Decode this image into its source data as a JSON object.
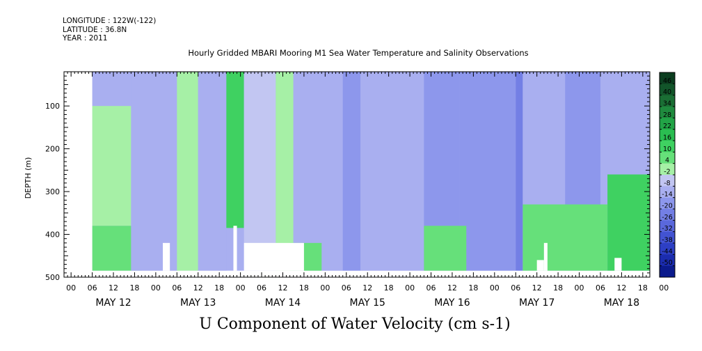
{
  "header": {
    "longitude": "LONGITUDE : 122W(-122)",
    "latitude": "LATITUDE : 36.8N",
    "year": "YEAR : 2011",
    "title": "Hourly Gridded MBARI Mooring M1 Sea Water Temperature and Salinity Observations"
  },
  "variable_label": "U Component of Water Velocity (cm s-1)",
  "chart_data": {
    "type": "heatmap",
    "title": "Hourly Gridded MBARI Mooring M1 Sea Water Temperature and Salinity Observations",
    "variable": "U Component of Water Velocity (cm s-1)",
    "ylabel": "DEPTH (m)",
    "y_reversed": true,
    "ylim": [
      500,
      20
    ],
    "y_ticks": [
      100,
      200,
      300,
      400,
      500
    ],
    "xlim_hours": [
      -2,
      164
    ],
    "x_hour_ticks": [
      "00",
      "06",
      "12",
      "18",
      "00",
      "06",
      "12",
      "18",
      "00",
      "06",
      "12",
      "18",
      "00",
      "06",
      "12",
      "18",
      "00",
      "06",
      "12",
      "18",
      "00",
      "06",
      "12",
      "18",
      "00",
      "06",
      "12",
      "18",
      "00"
    ],
    "x_day_labels": [
      "MAY 12",
      "MAY 13",
      "MAY 14",
      "MAY 15",
      "MAY 16",
      "MAY 17",
      "MAY 18"
    ],
    "data_xlim_hours": [
      6,
      164
    ],
    "data_depth_range": [
      20,
      485
    ],
    "colorbar": {
      "levels": [
        48,
        46,
        40,
        34,
        28,
        22,
        16,
        10,
        4,
        -2,
        -8,
        -14,
        -20,
        -26,
        -32,
        -38,
        -44,
        -50
      ],
      "tick_labels": [
        "46",
        "40",
        "34",
        "28",
        "22",
        "16",
        "10",
        "4",
        "-2",
        "-8",
        "-14",
        "-20",
        "-26",
        "-32",
        "-38",
        "-44",
        "-50"
      ],
      "colors": [
        "#0b3d1f",
        "#12552a",
        "#1a6e34",
        "#1f8a3e",
        "#22a447",
        "#2abd51",
        "#3fd161",
        "#66e07a",
        "#a6f0a6",
        "#c2c6f2",
        "#a9aff0",
        "#8d97ec",
        "#737fe5",
        "#5a68dc",
        "#4253d2",
        "#2d3fc4",
        "#1b2cae",
        "#0b1a8c"
      ]
    },
    "regions": [
      {
        "x0": 6,
        "x1": 17,
        "d0": 20,
        "d1": 100,
        "v": -8
      },
      {
        "x0": 6,
        "x1": 17,
        "d0": 100,
        "d1": 380,
        "v": 4
      },
      {
        "x0": 6,
        "x1": 20,
        "d0": 380,
        "d1": 485,
        "v": 10
      },
      {
        "x0": 17,
        "x1": 30,
        "d0": 20,
        "d1": 485,
        "v": -8
      },
      {
        "x0": 30,
        "x1": 36,
        "d0": 20,
        "d1": 485,
        "v": 4
      },
      {
        "x0": 36,
        "x1": 44,
        "d0": 20,
        "d1": 485,
        "v": -8
      },
      {
        "x0": 44,
        "x1": 49,
        "d0": 20,
        "d1": 385,
        "v": 16
      },
      {
        "x0": 49,
        "x1": 58,
        "d0": 20,
        "d1": 485,
        "v": -2
      },
      {
        "x0": 58,
        "x1": 63,
        "d0": 20,
        "d1": 485,
        "v": 4
      },
      {
        "x0": 63,
        "x1": 77,
        "d0": 20,
        "d1": 485,
        "v": -8
      },
      {
        "x0": 77,
        "x1": 82,
        "d0": 20,
        "d1": 485,
        "v": -14
      },
      {
        "x0": 82,
        "x1": 100,
        "d0": 20,
        "d1": 485,
        "v": -8
      },
      {
        "x0": 100,
        "x1": 110,
        "d0": 20,
        "d1": 485,
        "v": -14
      },
      {
        "x0": 110,
        "x1": 126,
        "d0": 20,
        "d1": 485,
        "v": -14
      },
      {
        "x0": 126,
        "x1": 128,
        "d0": 20,
        "d1": 485,
        "v": -20
      },
      {
        "x0": 128,
        "x1": 140,
        "d0": 20,
        "d1": 485,
        "v": -8
      },
      {
        "x0": 140,
        "x1": 150,
        "d0": 20,
        "d1": 485,
        "v": -14
      },
      {
        "x0": 150,
        "x1": 164,
        "d0": 20,
        "d1": 485,
        "v": -8
      },
      {
        "x0": 62,
        "x1": 71,
        "d0": 420,
        "d1": 485,
        "v": 10
      },
      {
        "x0": 100,
        "x1": 112,
        "d0": 380,
        "d1": 485,
        "v": 10
      },
      {
        "x0": 128,
        "x1": 152,
        "d0": 330,
        "d1": 485,
        "v": 10
      },
      {
        "x0": 152,
        "x1": 164,
        "d0": 260,
        "d1": 485,
        "v": 16
      }
    ],
    "blank_areas": [
      {
        "x0": -2,
        "x1": 6,
        "d0": 20,
        "d1": 500
      },
      {
        "x0": 6,
        "x1": 164,
        "d0": 485,
        "d1": 500
      },
      {
        "x0": 26,
        "x1": 28,
        "d0": 420,
        "d1": 485
      },
      {
        "x0": 46,
        "x1": 47,
        "d0": 380,
        "d1": 485
      },
      {
        "x0": 49,
        "x1": 66,
        "d0": 420,
        "d1": 485
      },
      {
        "x0": 132,
        "x1": 134,
        "d0": 460,
        "d1": 485
      },
      {
        "x0": 134,
        "x1": 135,
        "d0": 420,
        "d1": 485
      },
      {
        "x0": 154,
        "x1": 156,
        "d0": 455,
        "d1": 485
      }
    ]
  }
}
